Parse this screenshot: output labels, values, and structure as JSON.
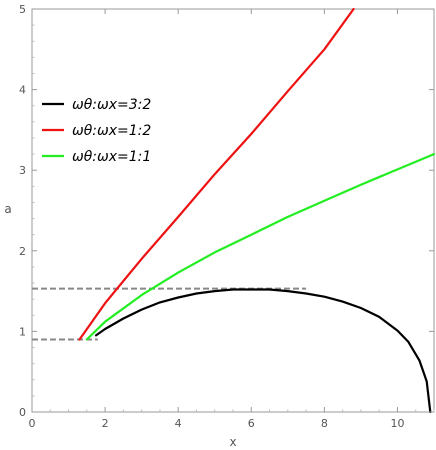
{
  "chart_data": {
    "type": "line",
    "xlabel": "x",
    "ylabel": "a",
    "xlim": [
      0,
      11
    ],
    "ylim": [
      0,
      5
    ],
    "x_ticks": [
      "0",
      "2",
      "4",
      "6",
      "8",
      "10"
    ],
    "y_ticks": [
      "0",
      "1",
      "2",
      "3",
      "4",
      "5"
    ],
    "grid": false,
    "legend_position": "top-left",
    "series": [
      {
        "name": "ωθ:ωx=3:2",
        "color": "#000000",
        "x": [
          1.75,
          2.0,
          2.5,
          3.0,
          3.5,
          4.0,
          4.5,
          5.0,
          5.5,
          6.0,
          6.5,
          7.0,
          7.5,
          8.0,
          8.5,
          9.0,
          9.5,
          10.0,
          10.3,
          10.6,
          10.8,
          10.9
        ],
        "y": [
          0.95,
          1.03,
          1.16,
          1.27,
          1.36,
          1.42,
          1.47,
          1.5,
          1.52,
          1.52,
          1.52,
          1.5,
          1.47,
          1.43,
          1.37,
          1.29,
          1.18,
          1.01,
          0.87,
          0.64,
          0.38,
          0.0
        ]
      },
      {
        "name": "ωθ:ωx=1:2",
        "color": "#ee1111",
        "x": [
          1.3,
          2.0,
          3.0,
          4.0,
          5.0,
          6.0,
          7.0,
          8.0,
          8.8
        ],
        "y": [
          0.9,
          1.35,
          1.9,
          2.42,
          2.95,
          3.45,
          3.98,
          4.5,
          5.0
        ]
      },
      {
        "name": "ωθ:ωx=1:1",
        "color": "#22ee22",
        "x": [
          1.5,
          2.0,
          3.0,
          4.0,
          5.0,
          6.0,
          7.0,
          8.0,
          9.0,
          10.0,
          11.0
        ],
        "y": [
          0.9,
          1.12,
          1.45,
          1.73,
          1.98,
          2.2,
          2.42,
          2.62,
          2.82,
          3.01,
          3.2
        ]
      }
    ],
    "reference_lines": [
      {
        "style": "dashed",
        "color": "#888888",
        "x": [
          0,
          1.8
        ],
        "y": [
          0.9,
          0.9
        ]
      },
      {
        "style": "dashed",
        "color": "#888888",
        "x": [
          0,
          7.5
        ],
        "y": [
          1.53,
          1.53
        ]
      }
    ]
  }
}
